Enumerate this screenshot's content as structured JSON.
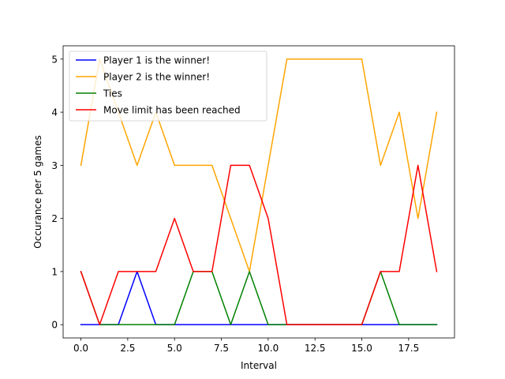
{
  "chart_data": {
    "type": "line",
    "title": "",
    "xlabel": "Interval",
    "ylabel": "Occurance per 5 games",
    "xlim": [
      -0.95,
      19.95
    ],
    "ylim": [
      -0.25,
      5.25
    ],
    "xticks": [
      0.0,
      2.5,
      5.0,
      7.5,
      10.0,
      12.5,
      15.0,
      17.5
    ],
    "xtick_labels": [
      "0.0",
      "2.5",
      "5.0",
      "7.5",
      "10.0",
      "12.5",
      "15.0",
      "17.5"
    ],
    "yticks": [
      0,
      1,
      2,
      3,
      4,
      5
    ],
    "ytick_labels": [
      "0",
      "1",
      "2",
      "3",
      "4",
      "5"
    ],
    "x": [
      0,
      1,
      2,
      3,
      4,
      5,
      6,
      7,
      8,
      9,
      10,
      11,
      12,
      13,
      14,
      15,
      16,
      17,
      18,
      19
    ],
    "legend_position": "top-left",
    "grid": false,
    "series": [
      {
        "name": "Player 1 is the winner!",
        "color": "#0000ff",
        "values": [
          0,
          0,
          0,
          1,
          0,
          0,
          0,
          0,
          0,
          0,
          0,
          0,
          0,
          0,
          0,
          0,
          0,
          0,
          0,
          0
        ]
      },
      {
        "name": "Player 2 is the winner!",
        "color": "#ffa500",
        "values": [
          3,
          5,
          4,
          3,
          4,
          3,
          3,
          3,
          2,
          1,
          3,
          5,
          5,
          5,
          5,
          5,
          3,
          4,
          2,
          4
        ]
      },
      {
        "name": "Ties",
        "color": "#008000",
        "values": [
          1,
          0,
          0,
          0,
          0,
          0,
          1,
          1,
          0,
          1,
          0,
          0,
          0,
          0,
          0,
          0,
          1,
          0,
          0,
          0
        ]
      },
      {
        "name": "Move limit has been reached",
        "color": "#ff0000",
        "values": [
          1,
          0,
          1,
          1,
          1,
          2,
          1,
          1,
          3,
          3,
          2,
          0,
          0,
          0,
          0,
          0,
          1,
          1,
          3,
          1
        ]
      }
    ]
  }
}
